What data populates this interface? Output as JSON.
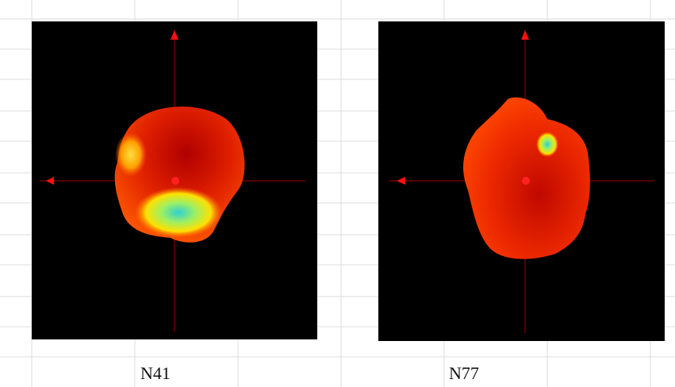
{
  "panels": [
    {
      "label": "N41"
    },
    {
      "label": "N77"
    }
  ]
}
